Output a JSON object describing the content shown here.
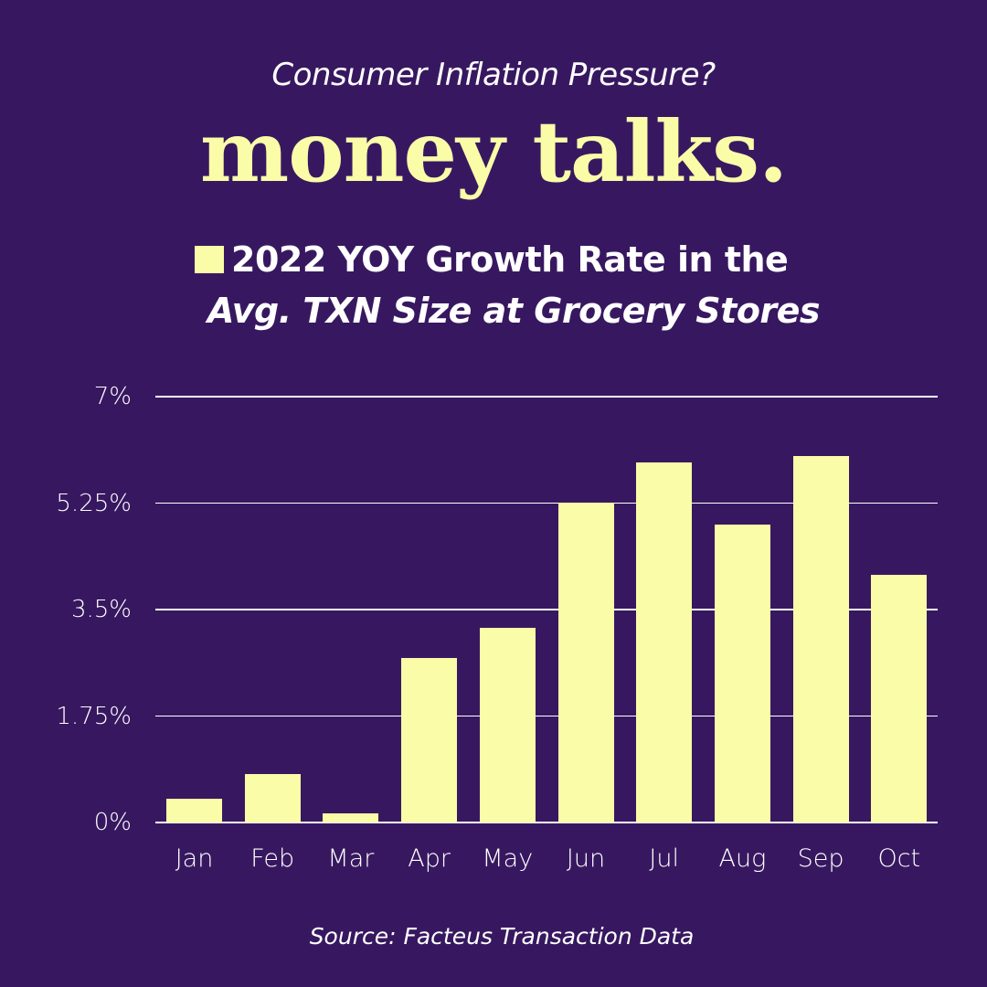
{
  "header": {
    "subtitle": "Consumer Inflation Pressure?",
    "brand": "money talks."
  },
  "legend": {
    "line1": "2022 YOY Growth Rate in the",
    "line2": "Avg. TXN Size at Grocery Stores",
    "swatch_color": "#FAFCA8"
  },
  "footer": {
    "source": "Source:  Facteus Transaction Data"
  },
  "colors": {
    "background": "#371860",
    "bar": "#FAFCA8",
    "text": "#FFFFFF",
    "gridline": "#FFFFFF"
  },
  "axis": {
    "y_ticks": [
      "0%",
      "1.75%",
      "3.5%",
      "5.25%",
      "7%"
    ],
    "x_ticks": [
      "Jan",
      "Feb",
      "Mar",
      "Apr",
      "May",
      "Jun",
      "Jul",
      "Aug",
      "Sep",
      "Oct"
    ]
  },
  "chart_data": {
    "type": "bar",
    "title": "2022 YOY Growth Rate in the Avg. TXN Size at Grocery Stores",
    "subtitle": "Consumer Inflation Pressure?",
    "categories": [
      "Jan",
      "Feb",
      "Mar",
      "Apr",
      "May",
      "Jun",
      "Jul",
      "Aug",
      "Sep",
      "Oct"
    ],
    "series": [
      {
        "name": "2022 YOY Growth Rate in the Avg. TXN Size at Grocery Stores",
        "values": [
          0.39,
          0.8,
          0.15,
          2.7,
          3.2,
          5.26,
          5.92,
          4.9,
          6.02,
          4.07
        ]
      }
    ],
    "xlabel": "",
    "ylabel": "",
    "ylim": [
      0,
      7
    ],
    "y_ticks": [
      0,
      1.75,
      3.5,
      5.25,
      7
    ],
    "y_tick_format": "percent",
    "grid": "horizontal",
    "legend_position": "top",
    "source": "Source:  Facteus Transaction Data"
  }
}
